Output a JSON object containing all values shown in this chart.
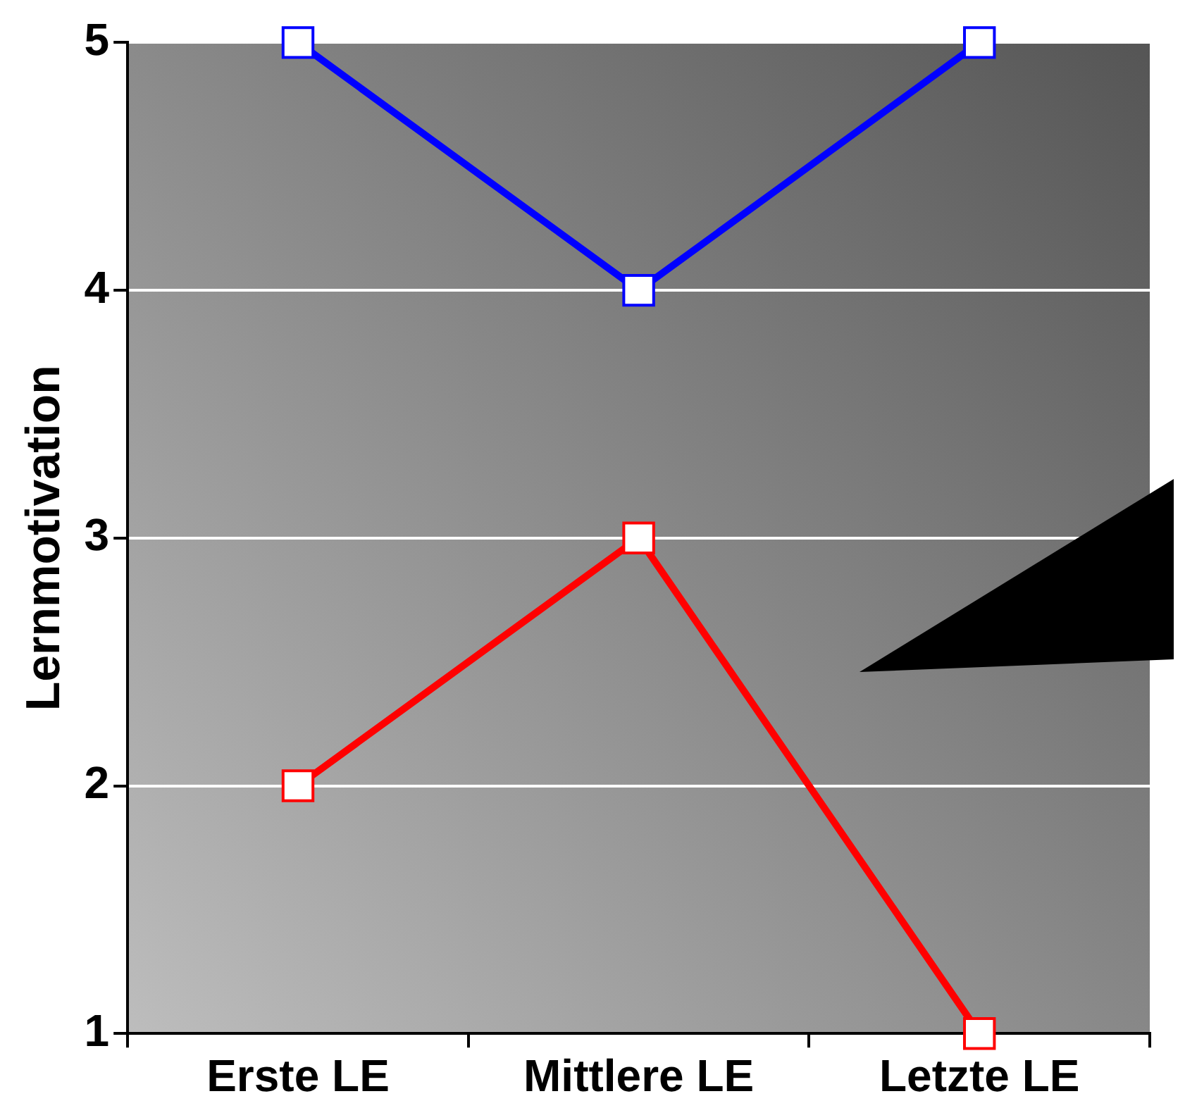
{
  "chart_data": {
    "type": "line",
    "ylabel": "Lernmotivation",
    "categories": [
      "Erste LE",
      "Mittlere LE",
      "Letzte LE"
    ],
    "series": [
      {
        "color": "#0000ff",
        "values": [
          5,
          4,
          5
        ]
      },
      {
        "color": "#ff0000",
        "values": [
          2,
          3,
          1
        ]
      }
    ],
    "ylim": [
      1,
      5
    ],
    "yticks": [
      1,
      2,
      3,
      4,
      5
    ],
    "grid": "y",
    "legend": false,
    "marker": "square",
    "line_style": "solid"
  }
}
